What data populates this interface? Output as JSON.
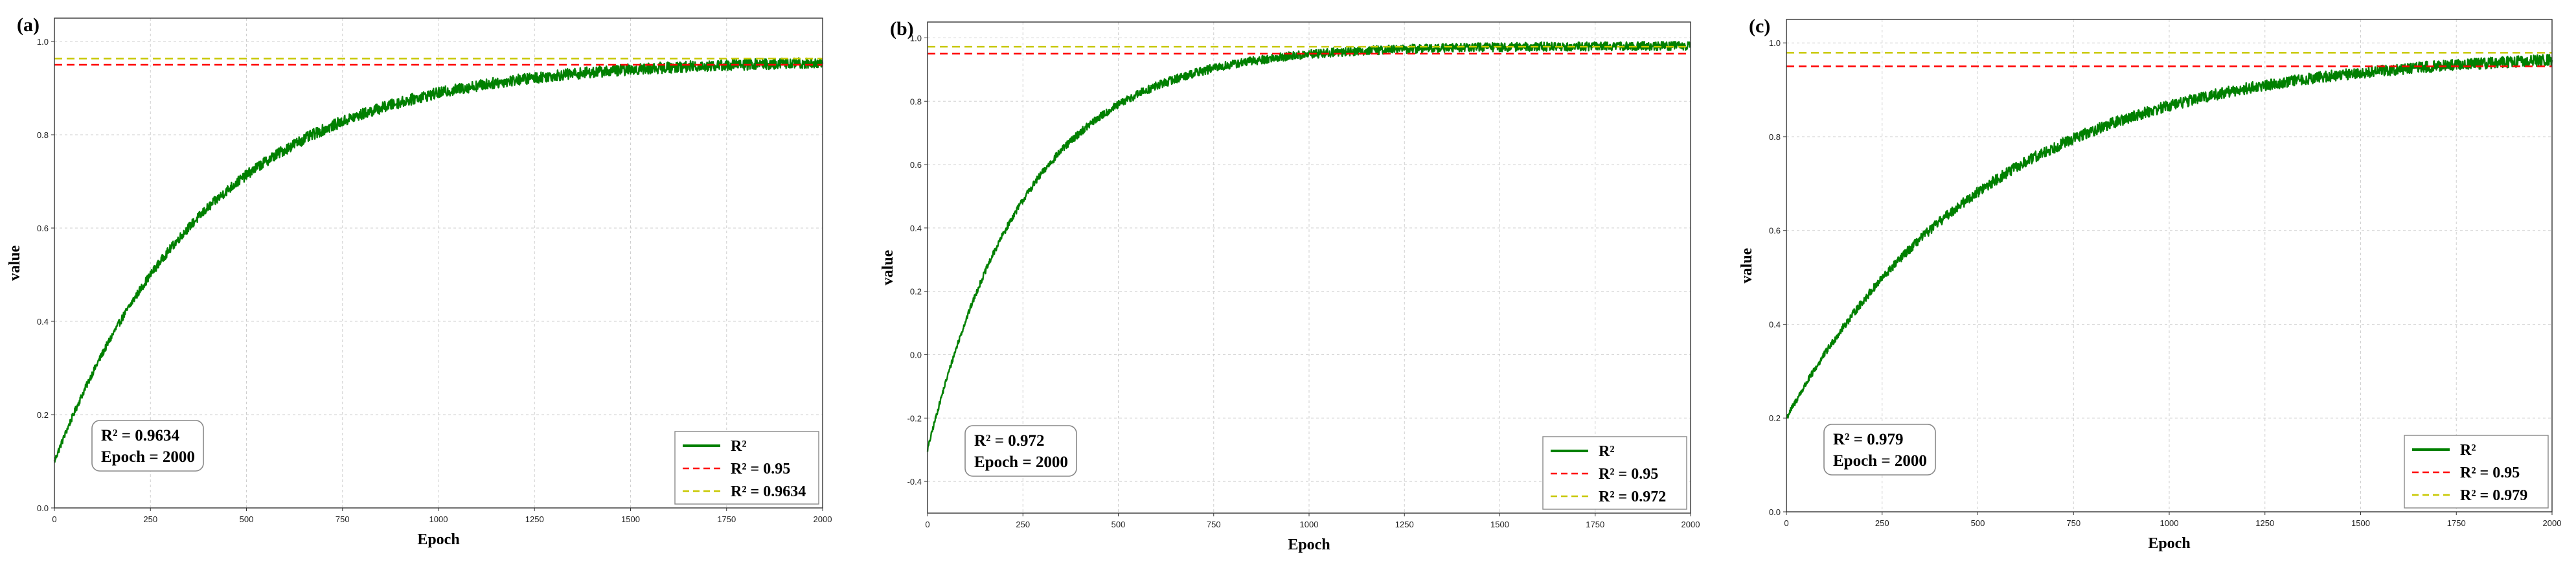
{
  "chart_data": [
    {
      "type": "line",
      "panel_label": "(a)",
      "xlabel": "Epoch",
      "ylabel": "value",
      "xlim": [
        0,
        2000
      ],
      "ylim": [
        0,
        1.05
      ],
      "xticks": [
        "0",
        "250",
        "500",
        "750",
        "1000",
        "1250",
        "1500",
        "1750",
        "2000"
      ],
      "yticks": [
        "0.0",
        "0.2",
        "0.4",
        "0.6",
        "0.8",
        "1.0"
      ],
      "grid": true,
      "annotation": [
        "R² = 0.9634",
        "Epoch = 2000"
      ],
      "legend_position": "bottom-right",
      "series": [
        {
          "name": "R²",
          "kind": "curve",
          "color": "#008000",
          "start": 0.1,
          "final": 0.96,
          "tau": 400,
          "noise": 0.012,
          "x_end": 2000
        },
        {
          "name": "R² = 0.95",
          "kind": "hline",
          "color": "#ff0000",
          "value": 0.95
        },
        {
          "name": "R² = 0.9634",
          "kind": "hline",
          "color": "#c8c800",
          "value": 0.9634
        }
      ]
    },
    {
      "type": "line",
      "panel_label": "(b)",
      "xlabel": "Epoch",
      "ylabel": "value",
      "xlim": [
        0,
        2000
      ],
      "ylim": [
        -0.5,
        1.05
      ],
      "xticks": [
        "0",
        "250",
        "500",
        "750",
        "1000",
        "1250",
        "1500",
        "1750",
        "2000"
      ],
      "yticks": [
        "-0.4",
        "-0.2",
        "0.0",
        "0.2",
        "0.4",
        "0.6",
        "0.8",
        "1.0"
      ],
      "grid": true,
      "annotation": [
        "R² = 0.972",
        "Epoch = 2000"
      ],
      "legend_position": "bottom-right",
      "series": [
        {
          "name": "R²",
          "kind": "curve",
          "color": "#008000",
          "start": -0.3,
          "final": 0.975,
          "tau": 260,
          "noise": 0.014,
          "x_end": 2000
        },
        {
          "name": "R² = 0.95",
          "kind": "hline",
          "color": "#ff0000",
          "value": 0.95
        },
        {
          "name": "R² = 0.972",
          "kind": "hline",
          "color": "#c8c800",
          "value": 0.972
        }
      ]
    },
    {
      "type": "line",
      "panel_label": "(c)",
      "xlabel": "Epoch",
      "ylabel": "value",
      "xlim": [
        0,
        2000
      ],
      "ylim": [
        0,
        1.05
      ],
      "xticks": [
        "0",
        "250",
        "500",
        "750",
        "1000",
        "1250",
        "1500",
        "1750",
        "2000"
      ],
      "yticks": [
        "0.0",
        "0.2",
        "0.4",
        "0.6",
        "0.8",
        "1.0"
      ],
      "grid": true,
      "annotation": [
        "R² = 0.979",
        "Epoch = 2000"
      ],
      "legend_position": "bottom-right",
      "series": [
        {
          "name": "R²",
          "kind": "curve",
          "color": "#008000",
          "start": 0.2,
          "final": 0.98,
          "tau": 520,
          "noise": 0.012,
          "x_end": 2000
        },
        {
          "name": "R² = 0.95",
          "kind": "hline",
          "color": "#ff0000",
          "value": 0.95
        },
        {
          "name": "R² = 0.979",
          "kind": "hline",
          "color": "#c8c800",
          "value": 0.979
        }
      ]
    }
  ]
}
